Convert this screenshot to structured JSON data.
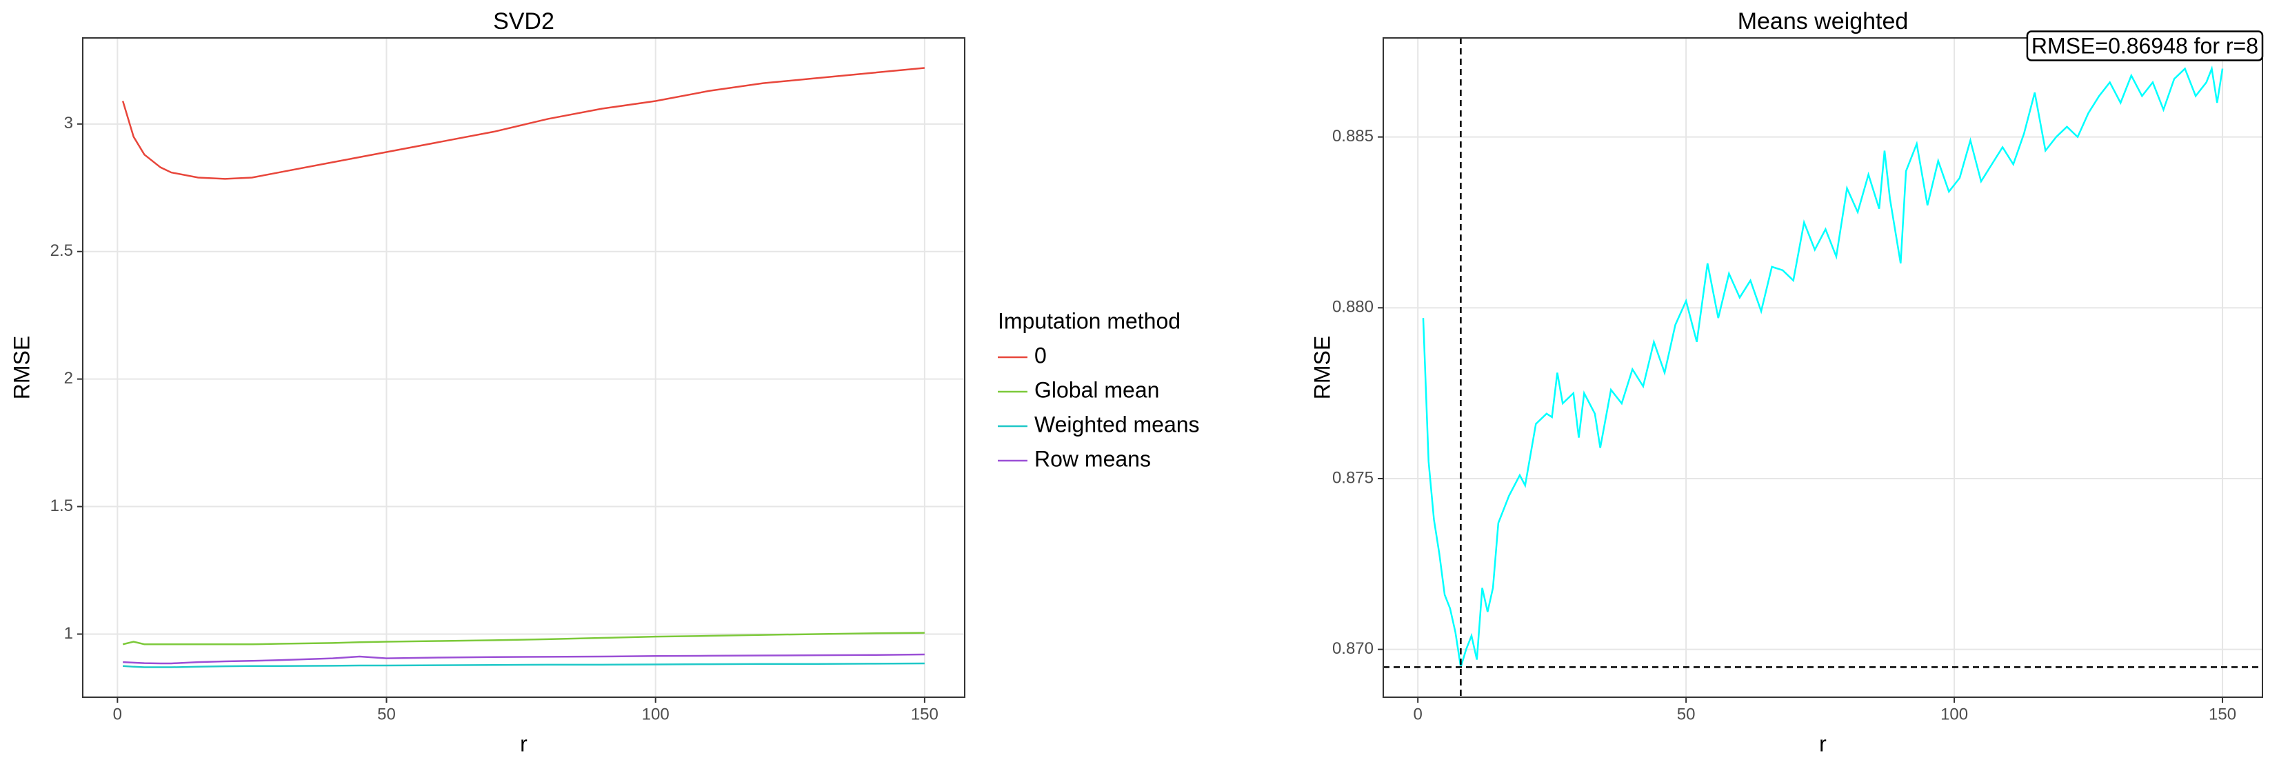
{
  "chart_data": [
    {
      "type": "line",
      "title": "SVD2",
      "x_label": "r",
      "y_label": "RMSE",
      "xlim": [
        -6.45,
        157.45
      ],
      "ylim": [
        0.7525,
        3.3375
      ],
      "xticks": [
        0,
        50,
        100,
        150
      ],
      "yticks": [
        1,
        1.5,
        2,
        2.5,
        3
      ],
      "grid": true,
      "legend_title": "Imputation method",
      "legend": "right",
      "x": [
        1,
        3,
        5,
        8,
        10,
        15,
        20,
        25,
        30,
        40,
        45,
        50,
        60,
        70,
        80,
        90,
        100,
        110,
        120,
        130,
        140,
        150
      ],
      "series": [
        {
          "name": "0",
          "color": "#e8463b",
          "values": [
            3.09,
            2.95,
            2.88,
            2.83,
            2.81,
            2.79,
            2.785,
            2.79,
            2.81,
            2.85,
            2.87,
            2.89,
            2.93,
            2.97,
            3.02,
            3.06,
            3.09,
            3.13,
            3.16,
            3.18,
            3.2,
            3.22
          ]
        },
        {
          "name": "Global mean",
          "color": "#7cc93a",
          "values": [
            0.96,
            0.97,
            0.96,
            0.96,
            0.96,
            0.96,
            0.96,
            0.96,
            0.962,
            0.965,
            0.968,
            0.97,
            0.973,
            0.976,
            0.98,
            0.985,
            0.99,
            0.993,
            0.997,
            1.0,
            1.003,
            1.005
          ]
        },
        {
          "name": "Weighted means",
          "color": "#1fc8c8",
          "values": [
            0.875,
            0.872,
            0.87,
            0.87,
            0.87,
            0.872,
            0.874,
            0.875,
            0.875,
            0.876,
            0.877,
            0.877,
            0.878,
            0.879,
            0.88,
            0.88,
            0.881,
            0.882,
            0.883,
            0.883,
            0.884,
            0.885
          ]
        },
        {
          "name": "Row means",
          "color": "#9b4fd6",
          "values": [
            0.89,
            0.888,
            0.886,
            0.885,
            0.885,
            0.89,
            0.893,
            0.895,
            0.898,
            0.905,
            0.912,
            0.905,
            0.908,
            0.91,
            0.911,
            0.912,
            0.914,
            0.915,
            0.916,
            0.917,
            0.918,
            0.92
          ]
        }
      ]
    },
    {
      "type": "line",
      "title": "Means weighted",
      "x_label": "r",
      "y_label": "RMSE",
      "xlim": [
        -6.45,
        157.45
      ],
      "ylim": [
        0.8686,
        0.8879
      ],
      "xticks": [
        0,
        50,
        100,
        150
      ],
      "yticks": [
        {
          "value": 0.87,
          "label": "0.870"
        },
        0.875,
        {
          "value": 0.88,
          "label": "0.880"
        },
        0.885
      ],
      "grid": true,
      "vline": 8,
      "hline": 0.86948,
      "annotation": "RMSE=0.86948 for r=8",
      "x": [
        1,
        2,
        3,
        4,
        5,
        6,
        7,
        8,
        9,
        10,
        11,
        12,
        13,
        14,
        15,
        17,
        19,
        20,
        22,
        24,
        25,
        26,
        27,
        29,
        30,
        31,
        33,
        34,
        36,
        38,
        40,
        42,
        44,
        46,
        48,
        50,
        52,
        54,
        56,
        58,
        60,
        62,
        64,
        66,
        68,
        70,
        72,
        74,
        76,
        78,
        80,
        82,
        84,
        86,
        87,
        88,
        90,
        91,
        93,
        95,
        97,
        99,
        101,
        103,
        105,
        107,
        109,
        111,
        113,
        115,
        117,
        119,
        121,
        123,
        125,
        127,
        129,
        131,
        133,
        135,
        137,
        139,
        141,
        143,
        145,
        147,
        148,
        149,
        150
      ],
      "series": [
        {
          "name": "Means weighted",
          "color": "#00ffff",
          "values": [
            0.8797,
            0.8755,
            0.8738,
            0.8728,
            0.8716,
            0.8712,
            0.8705,
            0.86948,
            0.87,
            0.8704,
            0.8697,
            0.8718,
            0.8711,
            0.8718,
            0.8737,
            0.8745,
            0.8751,
            0.8748,
            0.8766,
            0.8769,
            0.8768,
            0.8781,
            0.8772,
            0.8775,
            0.8762,
            0.8775,
            0.8769,
            0.8759,
            0.8776,
            0.8772,
            0.8782,
            0.8777,
            0.879,
            0.8781,
            0.8795,
            0.8802,
            0.879,
            0.8813,
            0.8797,
            0.881,
            0.8803,
            0.8808,
            0.8799,
            0.8812,
            0.8811,
            0.8808,
            0.8825,
            0.8817,
            0.8823,
            0.8815,
            0.8835,
            0.8828,
            0.8839,
            0.8829,
            0.8846,
            0.8832,
            0.8813,
            0.884,
            0.8848,
            0.883,
            0.8843,
            0.8834,
            0.8838,
            0.8849,
            0.8837,
            0.8842,
            0.8847,
            0.8842,
            0.8851,
            0.8863,
            0.8846,
            0.885,
            0.8853,
            0.885,
            0.8857,
            0.8862,
            0.8866,
            0.886,
            0.8868,
            0.8862,
            0.8866,
            0.8858,
            0.8867,
            0.887,
            0.8862,
            0.8866,
            0.887,
            0.886,
            0.887
          ]
        }
      ]
    }
  ]
}
